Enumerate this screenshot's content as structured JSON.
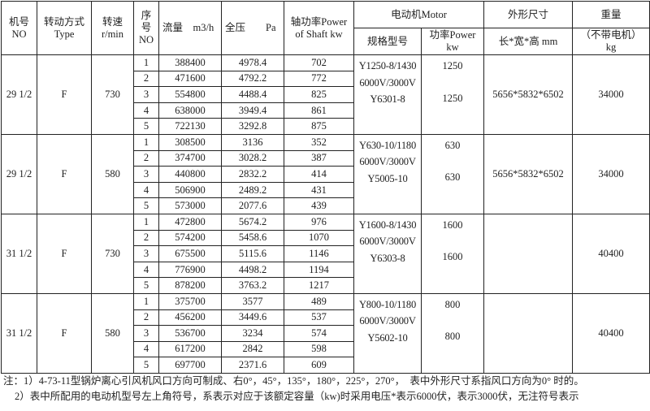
{
  "headers": {
    "no": "机号\nNO",
    "no_l1": "机号",
    "no_l2": "NO",
    "type_l1": "转动方式",
    "type_l2": "Type",
    "speed_l1": "转速",
    "speed_l2": "r/min",
    "seq_l1": "序",
    "seq_l2": "号",
    "seq_l3": "NO",
    "flow": "流量　m3/h",
    "pressure": "全压　　Pa",
    "shaft_l1": "轴功率Power",
    "shaft_l2": "of Shaft  kw",
    "motor": "电动机Motor",
    "motor_model": "规格型号",
    "motor_power_l1": "功率Power",
    "motor_power_l2": "kw",
    "size": "外形尺寸",
    "size_sub": "长*宽*高  mm",
    "weight": "重量",
    "weight_l1": "（不带电机）",
    "weight_l2": "kg"
  },
  "groups": [
    {
      "no": "29 1/2",
      "type": "F",
      "speed": "730",
      "motor_model": [
        "Y1250-8/1430",
        "6000V/3000V",
        "Y6301-8"
      ],
      "motor_power": [
        "1250",
        "1250"
      ],
      "size": "5656*5832*6502",
      "weight": "34000",
      "rows": [
        [
          "1",
          "388400",
          "4978.4",
          "702"
        ],
        [
          "2",
          "471600",
          "4792.2",
          "772"
        ],
        [
          "3",
          "554800",
          "4488.4",
          "825"
        ],
        [
          "4",
          "638000",
          "3949.4",
          "861"
        ],
        [
          "5",
          "722130",
          "3292.8",
          "875"
        ]
      ]
    },
    {
      "no": "29 1/2",
      "type": "F",
      "speed": "580",
      "motor_model": [
        "Y630-10/1180",
        "6000V/3000V",
        "Y5005-10"
      ],
      "motor_power": [
        "630",
        "630"
      ],
      "size": "5656*5832*6502",
      "weight": "34000",
      "rows": [
        [
          "1",
          "308500",
          "3136",
          "352"
        ],
        [
          "2",
          "374700",
          "3028.2",
          "387"
        ],
        [
          "3",
          "440800",
          "2832.2",
          "414"
        ],
        [
          "4",
          "506900",
          "2489.2",
          "431"
        ],
        [
          "5",
          "573000",
          "2077.6",
          "439"
        ]
      ]
    },
    {
      "no": "31 1/2",
      "type": "F",
      "speed": "730",
      "motor_model": [
        "Y1600-8/1430",
        "6000V/3000V",
        "Y6303-8"
      ],
      "motor_power": [
        "1600",
        "1600"
      ],
      "size": "",
      "weight": "40400",
      "rows": [
        [
          "1",
          "472800",
          "5674.2",
          "976"
        ],
        [
          "2",
          "574200",
          "5458.6",
          "1070"
        ],
        [
          "3",
          "675500",
          "5115.6",
          "1146"
        ],
        [
          "4",
          "776900",
          "4498.2",
          "1194"
        ],
        [
          "5",
          "878200",
          "3763.2",
          "1217"
        ]
      ]
    },
    {
      "no": "31 1/2",
      "type": "F",
      "speed": "580",
      "motor_model": [
        "Y800-10/1180",
        "6000V/3000V",
        "Y5602-10"
      ],
      "motor_power": [
        "800",
        "800"
      ],
      "size": "",
      "weight": "40400",
      "rows": [
        [
          "1",
          "375700",
          "3577",
          "489"
        ],
        [
          "2",
          "456200",
          "3449.6",
          "537"
        ],
        [
          "3",
          "536700",
          "3234",
          "574"
        ],
        [
          "4",
          "617200",
          "2842",
          "598"
        ],
        [
          "5",
          "697700",
          "2371.6",
          "609"
        ]
      ]
    }
  ],
  "notes": [
    "注：1）4-73-11型锅炉离心引风机风口方向可制成、右0°，45°，135°，180°，225°，270°，　表中外形尺寸系指风口方向为0° 时的。",
    "2）表中所配用的电动机型号左上角符号，系表示对应于该额定容量（kw)时采用电压*表示6000伏，表示3000伏，无注符号表示"
  ]
}
